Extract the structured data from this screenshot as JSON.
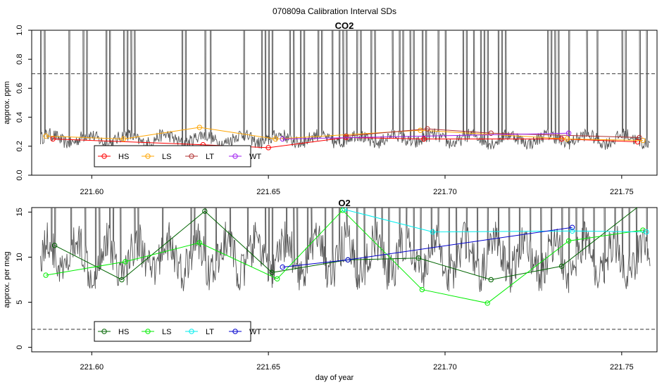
{
  "figure": {
    "title": "070809a   Calibration Interval SDs",
    "xlabel": "day of year"
  },
  "chart_data": [
    {
      "type": "line",
      "title": "CO2",
      "xlabel": "",
      "ylabel": "approx. ppm",
      "xlim": [
        221.583,
        221.76
      ],
      "ylim": [
        0.0,
        1.0
      ],
      "x_ticks": [
        221.6,
        221.65,
        221.7,
        221.75
      ],
      "x_tick_labels": [
        "221.60",
        "221.65",
        "221.70",
        "221.75"
      ],
      "y_ticks": [
        0.0,
        0.2,
        0.4,
        0.6,
        0.8,
        1.0
      ],
      "y_tick_labels": [
        "0.0",
        "0.2",
        "0.4",
        "0.6",
        "0.8",
        "1.0"
      ],
      "reference_line": {
        "y": 0.7,
        "style": "dashed"
      },
      "legend": {
        "placement": "bottom-left"
      },
      "background_trace": {
        "color": "#555555",
        "base": 0.25,
        "spike_x": [
          221.5855,
          221.5865,
          221.5935,
          221.5975,
          221.5985,
          221.604,
          221.605,
          221.609,
          221.61,
          221.611,
          221.612,
          221.6255,
          221.6265,
          221.632,
          221.6335,
          221.643,
          221.648,
          221.649,
          221.65,
          221.651,
          221.656,
          221.657,
          221.659,
          221.66,
          221.664,
          221.665,
          221.668,
          221.67,
          221.671,
          221.672,
          221.675,
          221.676,
          221.679,
          221.68,
          221.685,
          221.687,
          221.688,
          221.69,
          221.691,
          221.6935,
          221.6945,
          221.698,
          221.7,
          221.705,
          221.706,
          221.708,
          221.71,
          221.711,
          221.712,
          221.715,
          221.716,
          221.717,
          221.729,
          221.73,
          221.731,
          221.732,
          221.735,
          221.74,
          221.743,
          221.75,
          221.751,
          221.755,
          221.757
        ]
      },
      "series": [
        {
          "name": "HS",
          "color": "#ff0000",
          "x": [
            221.589,
            221.6315,
            221.65,
            221.672,
            221.694,
            221.733,
            221.7545
          ],
          "y": [
            0.25,
            0.21,
            0.19,
            0.26,
            0.25,
            0.25,
            0.23
          ]
        },
        {
          "name": "LS",
          "color": "#ffa500",
          "x": [
            221.587,
            221.609,
            221.6305,
            221.652,
            221.693,
            221.7345,
            221.756
          ],
          "y": [
            0.27,
            0.25,
            0.33,
            0.25,
            0.31,
            0.25,
            0.24
          ]
        },
        {
          "name": "LT",
          "color": "#b03030",
          "x": [
            221.672,
            221.695,
            221.713,
            221.755
          ],
          "y": [
            0.27,
            0.32,
            0.29,
            0.26
          ]
        },
        {
          "name": "WT",
          "color": "#a020f0",
          "x": [
            221.654,
            221.735
          ],
          "y": [
            0.25,
            0.29
          ]
        }
      ]
    },
    {
      "type": "line",
      "title": "O2",
      "xlabel": "day of year",
      "ylabel": "approx. per meg",
      "xlim": [
        221.583,
        221.76
      ],
      "ylim": [
        -0.5,
        15.5
      ],
      "x_ticks": [
        221.6,
        221.65,
        221.7,
        221.75
      ],
      "x_tick_labels": [
        "221.60",
        "221.65",
        "221.70",
        "221.75"
      ],
      "y_ticks": [
        0,
        5,
        10,
        15
      ],
      "y_tick_labels": [
        "0",
        "5",
        "10",
        "15"
      ],
      "reference_line": {
        "y": 2.0,
        "style": "dashed"
      },
      "legend": {
        "placement": "bottom-left"
      },
      "background_trace": {
        "color": "#555555",
        "base": 10.0,
        "spike_x": [
          221.5885,
          221.5895,
          221.594,
          221.598,
          221.601,
          221.602,
          221.605,
          221.606,
          221.608,
          221.612,
          221.613,
          221.62,
          221.628,
          221.629,
          221.632,
          221.635,
          221.639,
          221.644,
          221.649,
          221.65,
          221.651,
          221.655,
          221.657,
          221.658,
          221.661,
          221.662,
          221.666,
          221.668,
          221.67,
          221.672,
          221.675,
          221.677,
          221.68,
          221.682,
          221.684,
          221.687,
          221.689,
          221.691,
          221.693,
          221.696,
          221.698,
          221.701,
          221.703,
          221.706,
          221.709,
          221.712,
          221.715,
          221.718,
          221.721,
          221.724,
          221.727,
          221.73,
          221.733,
          221.735,
          221.737,
          221.739,
          221.742,
          221.745,
          221.748,
          221.75,
          221.752,
          221.754,
          221.757
        ]
      },
      "series": [
        {
          "name": "HS",
          "color": "#006400",
          "x": [
            221.5895,
            221.6085,
            221.632,
            221.651,
            221.6725,
            221.6925,
            221.713,
            221.733,
            221.756
          ],
          "y": [
            11.3,
            7.5,
            15.1,
            8.3,
            9.7,
            9.9,
            7.5,
            9.0,
            16.0
          ]
        },
        {
          "name": "LS",
          "color": "#00ee00",
          "x": [
            221.587,
            221.6095,
            221.6305,
            221.6525,
            221.671,
            221.6935,
            221.712,
            221.735,
            221.756
          ],
          "y": [
            8.0,
            9.5,
            11.6,
            7.6,
            15.2,
            6.4,
            4.9,
            11.8,
            13.0
          ]
        },
        {
          "name": "LT",
          "color": "#00eeee",
          "x": [
            221.6715,
            221.6965,
            221.736,
            221.757
          ],
          "y": [
            15.3,
            12.8,
            12.9,
            12.8
          ]
        },
        {
          "name": "WT",
          "color": "#0000cd",
          "x": [
            221.654,
            221.6725,
            221.736
          ],
          "y": [
            8.9,
            9.7,
            13.3
          ]
        }
      ]
    }
  ]
}
